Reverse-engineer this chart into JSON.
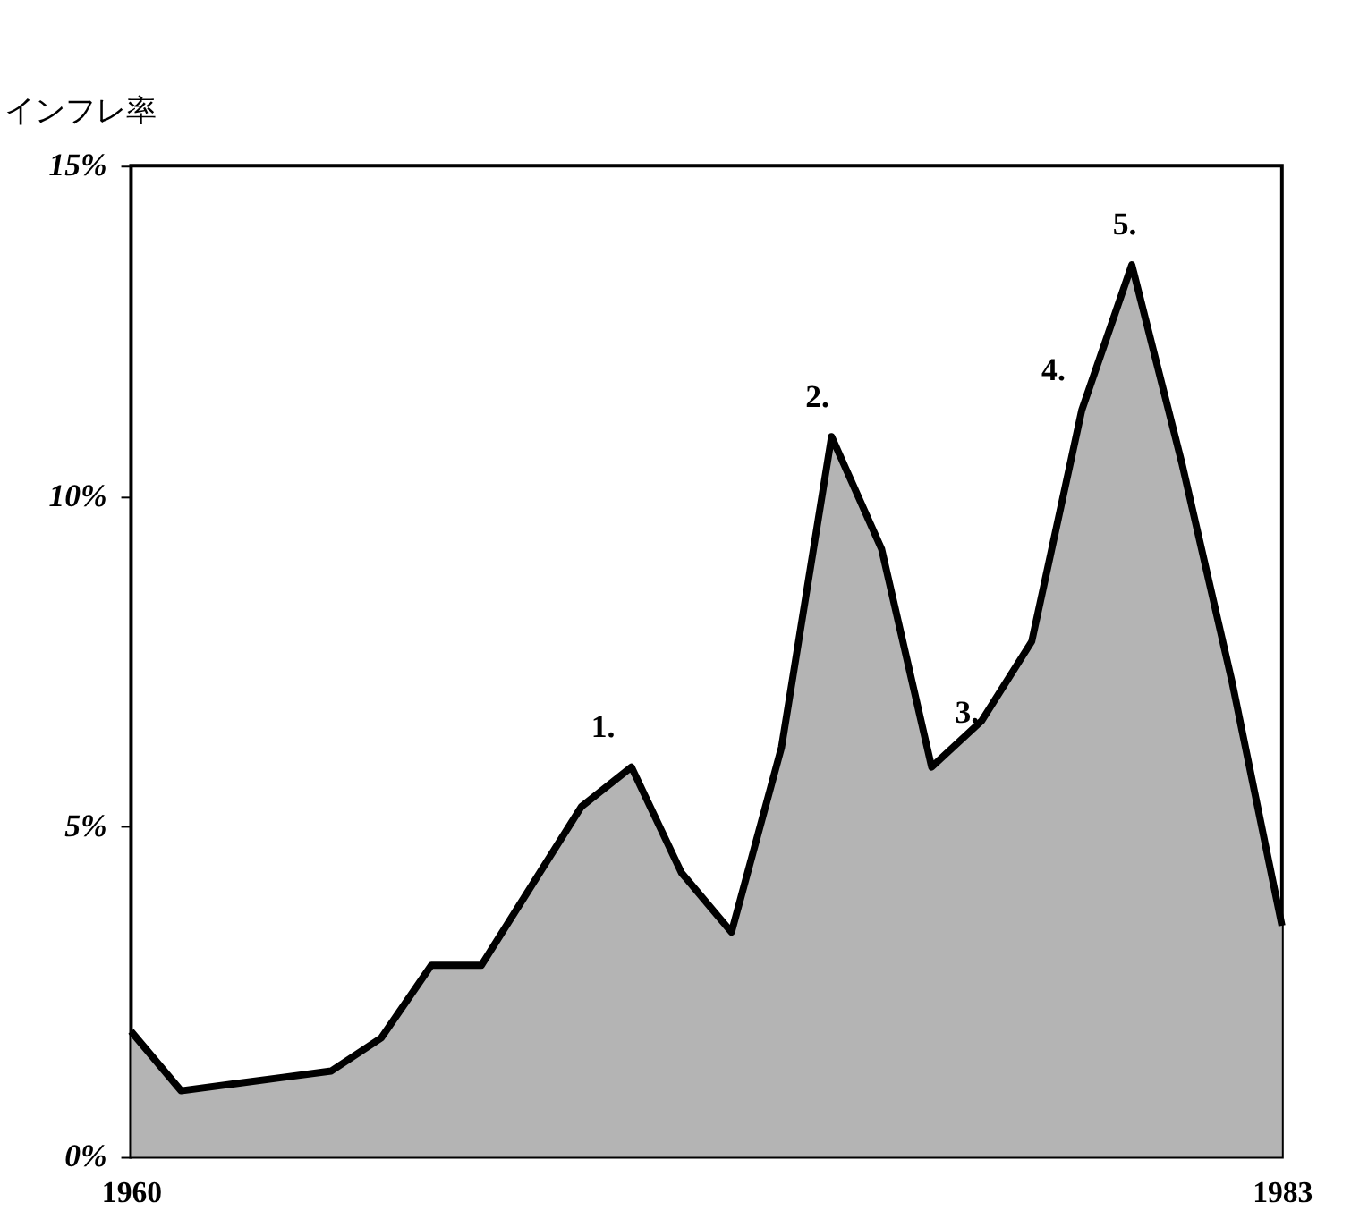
{
  "chart_data": {
    "type": "area",
    "ylabel": "インフレ率",
    "x": [
      1960,
      1961,
      1962,
      1963,
      1964,
      1965,
      1966,
      1967,
      1968,
      1969,
      1970,
      1971,
      1972,
      1973,
      1974,
      1975,
      1976,
      1977,
      1978,
      1979,
      1980,
      1981,
      1982,
      1983
    ],
    "series": [
      {
        "color": "#b4b4b4",
        "values": [
          1.9,
          1.0,
          1.1,
          1.2,
          1.3,
          1.8,
          2.9,
          2.9,
          4.1,
          5.3,
          5.9,
          4.3,
          3.4,
          6.2,
          10.9,
          9.2,
          5.9,
          6.6,
          7.8,
          11.3,
          13.5,
          10.5,
          7.2,
          3.5
        ]
      }
    ],
    "xlim": [
      1960,
      1983
    ],
    "xticks": [
      1960,
      1983
    ],
    "ylim": [
      0,
      15
    ],
    "yticks": [
      {
        "value": 0,
        "label": "0%"
      },
      {
        "value": 5,
        "label": "5%"
      },
      {
        "value": 10,
        "label": "10%"
      },
      {
        "value": 15,
        "label": "15%"
      }
    ],
    "annotations": [
      {
        "text": "1.",
        "x": 1970,
        "y": 5.9
      },
      {
        "text": "2.",
        "x": 1974,
        "y": 10.9
      },
      {
        "text": "3.",
        "x": 1976,
        "y": 5.9
      },
      {
        "text": "4.",
        "x": 1979,
        "y": 11.3
      },
      {
        "text": "5.",
        "x": 1980,
        "y": 13.5
      }
    ],
    "grid": false
  }
}
